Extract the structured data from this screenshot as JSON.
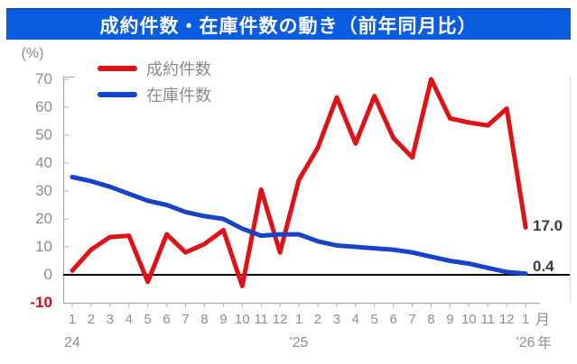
{
  "title": "成約件数・在庫件数の動き（前年同月比）",
  "colors": {
    "banner_bg": "#0a5ce0",
    "contracts_red": "#e11217",
    "inventory_blue": "#1544c8",
    "axis_text": "#8e8e8e",
    "negative_tick": "#e60012",
    "zero_line": "#000000",
    "axis_line": "#aaaaaa",
    "tick_line": "#b0b0b0",
    "frame_faint": "#d9d9d9",
    "data_label": "#3b3b3b"
  },
  "y_axis": {
    "unit_label": "(%)",
    "ticks": [
      70,
      60,
      50,
      40,
      30,
      20,
      10,
      0
    ],
    "negative_tick": "-10"
  },
  "x_axis": {
    "months": [
      "1",
      "2",
      "3",
      "4",
      "5",
      "6",
      "7",
      "8",
      "9",
      "10",
      "11",
      "12",
      "1",
      "2",
      "3",
      "4",
      "5",
      "6",
      "7",
      "8",
      "9",
      "10",
      "11",
      "12",
      "1"
    ],
    "years": [
      {
        "label": "24",
        "month_index": 0
      },
      {
        "label": "'25",
        "month_index": 12
      },
      {
        "label": "'26",
        "month_index": 24
      }
    ],
    "month_suffix": "月",
    "year_suffix": "年"
  },
  "legend": [
    {
      "label": "成約件数",
      "color": "#e11217"
    },
    {
      "label": "在庫件数",
      "color": "#1544c8"
    }
  ],
  "annotations": {
    "contracts_last_value": "17.0",
    "inventory_last_value": "0.4"
  },
  "chart_data": {
    "type": "line",
    "title": "成約件数・在庫件数の動き（前年同月比）",
    "ylabel": "(%)",
    "ylim": [
      -10,
      70
    ],
    "grid": false,
    "legend_position": "top-left",
    "x": [
      "'24-1",
      "'24-2",
      "'24-3",
      "'24-4",
      "'24-5",
      "'24-6",
      "'24-7",
      "'24-8",
      "'24-9",
      "'24-10",
      "'24-11",
      "'24-12",
      "'25-1",
      "'25-2",
      "'25-3",
      "'25-4",
      "'25-5",
      "'25-6",
      "'25-7",
      "'25-8",
      "'25-9",
      "'25-10",
      "'25-11",
      "'25-12",
      "'26-1"
    ],
    "series": [
      {
        "name": "成約件数",
        "color": "#e11217",
        "values": [
          1.5,
          9,
          13.5,
          14,
          -2.5,
          14.5,
          8,
          11,
          16,
          -4,
          30.5,
          8,
          34,
          45.5,
          63.5,
          47,
          64,
          49,
          42,
          70,
          56,
          54.5,
          53.5,
          59.5,
          17.0
        ]
      },
      {
        "name": "在庫件数",
        "color": "#1544c8",
        "values": [
          35,
          33.5,
          31.5,
          29,
          26.5,
          25,
          22.5,
          21,
          20,
          16.5,
          14,
          14.5,
          14.5,
          12,
          10.5,
          10,
          9.5,
          9,
          8,
          6.5,
          5,
          4,
          2.5,
          1,
          0.4
        ]
      }
    ]
  }
}
